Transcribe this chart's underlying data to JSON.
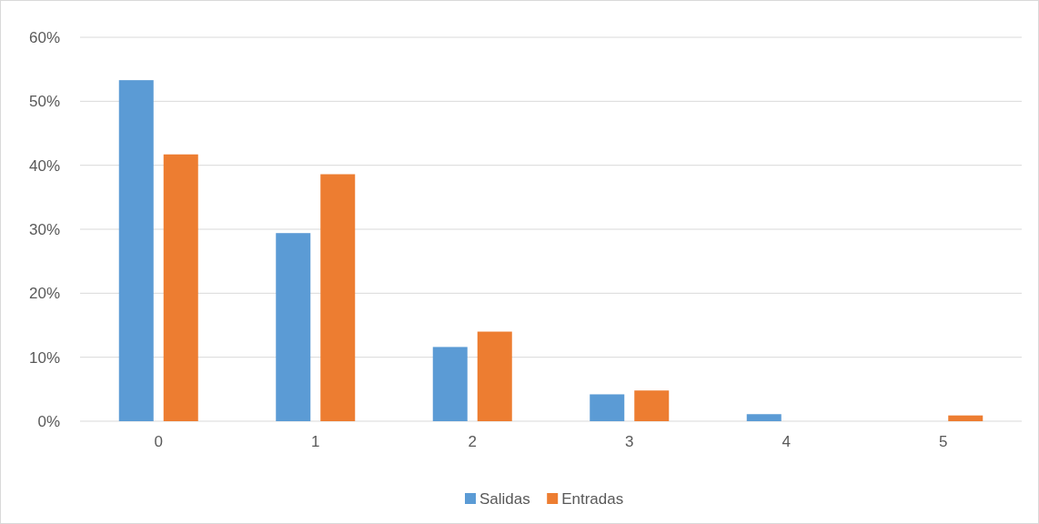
{
  "chart_data": {
    "type": "bar",
    "categories": [
      "0",
      "1",
      "2",
      "3",
      "4",
      "5"
    ],
    "series": [
      {
        "name": "Salidas",
        "color": "#5b9bd5",
        "values": [
          53.3,
          29.4,
          11.6,
          4.2,
          1.1,
          0
        ]
      },
      {
        "name": "Entradas",
        "color": "#ed7d31",
        "values": [
          41.7,
          38.6,
          14.0,
          4.8,
          0,
          0.9
        ]
      }
    ],
    "ylim": [
      0,
      60
    ],
    "yticks": [
      {
        "value": 0,
        "label": "0%"
      },
      {
        "value": 10,
        "label": "10%"
      },
      {
        "value": 20,
        "label": "20%"
      },
      {
        "value": 30,
        "label": "30%"
      },
      {
        "value": 40,
        "label": "40%"
      },
      {
        "value": 50,
        "label": "50%"
      },
      {
        "value": 60,
        "label": "60%"
      }
    ],
    "grid": "y",
    "legend": "bottom"
  }
}
